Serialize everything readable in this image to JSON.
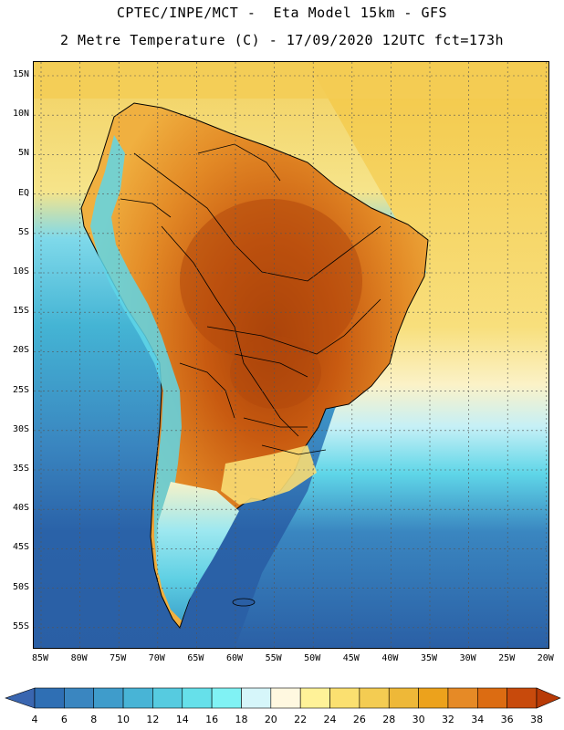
{
  "header": {
    "line1": "CPTEC/INPE/MCT -  Eta Model 15km - GFS",
    "line2": "2 Metre Temperature (C) - 17/09/2020 12UTC fct=173h"
  },
  "map": {
    "lat_labels": [
      "15N",
      "10N",
      "5N",
      "EQ",
      "5S",
      "10S",
      "15S",
      "20S",
      "25S",
      "30S",
      "35S",
      "40S",
      "45S",
      "50S",
      "55S"
    ],
    "lon_labels": [
      "85W",
      "80W",
      "75W",
      "70W",
      "65W",
      "60W",
      "55W",
      "50W",
      "45W",
      "40W",
      "35W",
      "30W",
      "25W",
      "20W"
    ],
    "colors": {
      "ocean_cold": "#2a5fa5",
      "ocean_mid": "#3a7fbf",
      "ocean_cool": "#44b4d4",
      "cyan": "#5fe4ee",
      "pale": "#f6f2c8",
      "warm_yellow": "#f8d860",
      "orange": "#e68a26",
      "dark_orange": "#c85a10",
      "brown": "#9a3a08",
      "border": "#000000"
    }
  },
  "colorbar": {
    "labels": [
      "4",
      "6",
      "8",
      "10",
      "12",
      "14",
      "16",
      "18",
      "20",
      "22",
      "24",
      "26",
      "28",
      "30",
      "32",
      "34",
      "36",
      "38"
    ],
    "colors": [
      "#3a66b0",
      "#2f6fb4",
      "#3a86c0",
      "#3f9ccb",
      "#48b4d6",
      "#56cbe0",
      "#66e0ea",
      "#80f2f4",
      "#d6f6fa",
      "#fff8e0",
      "#fff298",
      "#fbe070",
      "#f4cc52",
      "#eeb838",
      "#eca21c",
      "#e68a26",
      "#dc6c12",
      "#c84a0c",
      "#b83a06"
    ]
  }
}
